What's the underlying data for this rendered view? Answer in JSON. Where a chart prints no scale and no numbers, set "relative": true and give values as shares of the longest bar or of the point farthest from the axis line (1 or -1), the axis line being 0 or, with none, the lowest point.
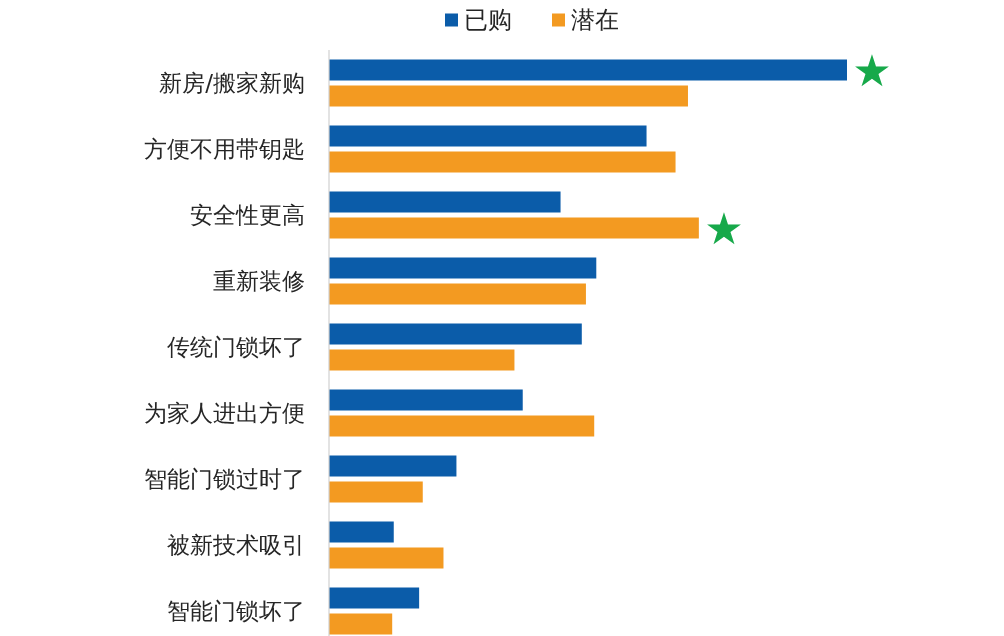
{
  "chart_data": {
    "type": "bar",
    "orientation": "horizontal",
    "relative": true,
    "categories": [
      "新房/搬家新购",
      "方便不用带钥匙",
      "安全性更高",
      "重新装修",
      "传统门锁坏了",
      "为家人进出方便",
      "智能门锁过时了",
      "被新技术吸引",
      "智能门锁坏了"
    ],
    "series": [
      {
        "name": "已购",
        "color": "#0b5ca9",
        "values": [
          1,
          0.613,
          0.447,
          0.516,
          0.488,
          0.374,
          0.246,
          0.125,
          0.174
        ]
      },
      {
        "name": "潜在",
        "color": "#f39a21",
        "values": [
          0.693,
          0.669,
          0.714,
          0.496,
          0.358,
          0.512,
          0.181,
          0.221,
          0.122
        ]
      }
    ],
    "legend": "top",
    "annotations": [
      {
        "text": "★",
        "x": 1,
        "y": "新房/搬家新购"
      },
      {
        "text": "★",
        "x": 0.714,
        "y": "安全性更高"
      }
    ]
  }
}
